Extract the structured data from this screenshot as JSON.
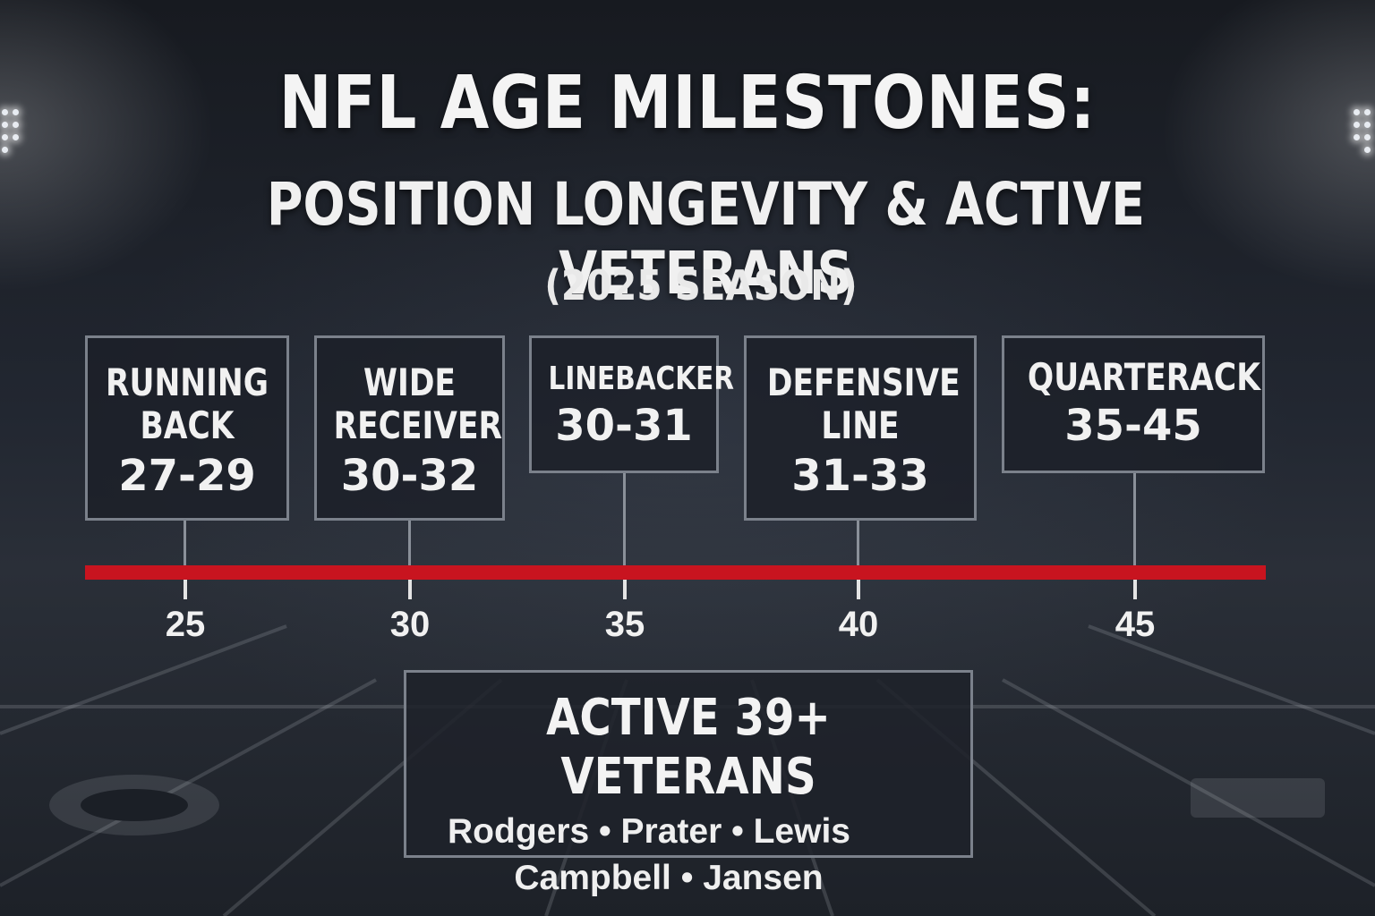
{
  "title": "NFL AGE MILESTONES:",
  "subtitle": "POSITION LONGEVITY & ACTIVE VETERANS",
  "season": "(2025 SEASON)",
  "positions": [
    {
      "name": "RUNNING\nBACK",
      "range": "27-29"
    },
    {
      "name": "WIDE\nRECEIVER",
      "range": "30-32"
    },
    {
      "name": "LINEBACKER",
      "range": "30-31"
    },
    {
      "name": "DEFENSIVE\nLINE",
      "range": "31-33"
    },
    {
      "name": "QUARTERACK",
      "range": "35-45"
    }
  ],
  "axis": {
    "line_color": "#c8141f",
    "ticks": [
      "25",
      "30",
      "35",
      "40",
      "45"
    ]
  },
  "veterans": {
    "title": "ACTIVE 39+ VETERANS",
    "line1": "Rodgers • Prater • Lewis",
    "line2": "Campbell • Jansen"
  }
}
